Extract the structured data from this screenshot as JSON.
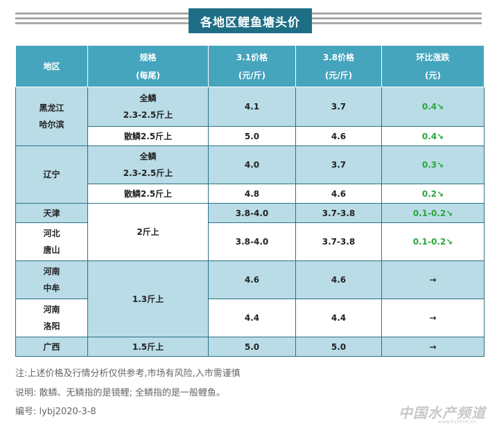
{
  "title": "各地区鲤鱼塘头价",
  "headers": {
    "region": "地区",
    "spec_1": "规格",
    "spec_2": "(每尾)",
    "p31_1": "3.1价格",
    "p31_2": "(元/斤)",
    "p38_1": "3.8价格",
    "p38_2": "(元/斤)",
    "chg_1": "环比涨跌",
    "chg_2": "(元)"
  },
  "rows": {
    "hlj_region_1": "黑龙江",
    "hlj_region_2": "哈尔滨",
    "hlj_a_spec_1": "全鳞",
    "hlj_a_spec_2": "2.3-2.5斤上",
    "hlj_a_p31": "4.1",
    "hlj_a_p38": "3.7",
    "hlj_a_chg": "0.4↘",
    "hlj_b_spec": "散鳞2.5斤上",
    "hlj_b_p31": "5.0",
    "hlj_b_p38": "4.6",
    "hlj_b_chg": "0.4↘",
    "ln_region": "辽宁",
    "ln_a_spec_1": "全鳞",
    "ln_a_spec_2": "2.3-2.5斤上",
    "ln_a_p31": "4.0",
    "ln_a_p38": "3.7",
    "ln_a_chg": "0.3↘",
    "ln_b_spec": "散鳞2.5斤上",
    "ln_b_p31": "4.8",
    "ln_b_p38": "4.6",
    "ln_b_chg": "0.2↘",
    "tj_region": "天津",
    "tj_p31": "3.8-4.0",
    "tj_p38": "3.7-3.8",
    "tj_chg": "0.1-0.2↘",
    "north_spec": "2斤上",
    "hb_region_1": "河北",
    "hb_region_2": "唐山",
    "hb_p31": "3.8-4.0",
    "hb_p38": "3.7-3.8",
    "hb_chg": "0.1-0.2↘",
    "hn1_region_1": "河南",
    "hn1_region_2": "中牟",
    "hn1_p31": "4.6",
    "hn1_p38": "4.6",
    "hn1_chg": "→",
    "henan_spec": "1.3斤上",
    "hn2_region_1": "河南",
    "hn2_region_2": "洛阳",
    "hn2_p31": "4.4",
    "hn2_p38": "4.4",
    "hn2_chg": "→",
    "gx_region": "广西",
    "gx_spec": "1.5斤上",
    "gx_p31": "5.0",
    "gx_p38": "5.0",
    "gx_chg": "→"
  },
  "notes": {
    "disclaimer": "注:上述价格及行情分析仅供参考,市场有风险,入市需谨慎",
    "explain": "说明: 散鳞、无鳞指的是镜鲤; 全鳞指的是一般鲤鱼。",
    "code": "编号: lybj2020-3-8"
  },
  "watermark": {
    "main": "中国水产频道",
    "sub": "www.fishfirst.cn"
  },
  "colors": {
    "title_bg": "#1e6f86",
    "header_bg": "#45a5bd",
    "row_blue": "#b9dce7",
    "change_color": "#2aa63c"
  }
}
